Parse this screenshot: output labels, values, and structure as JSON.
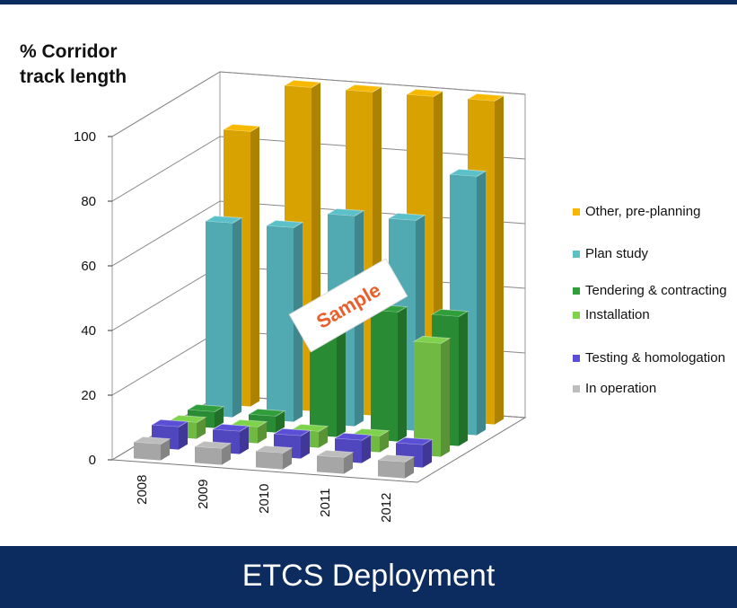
{
  "chart_data": {
    "type": "bar3d",
    "title": "ETCS Deployment",
    "y_label": "% Corridor track length",
    "watermark": "Sample",
    "categories": [
      "2008",
      "2009",
      "2010",
      "2011",
      "2012"
    ],
    "series": [
      {
        "name": "In operation",
        "color": "#bdbdbd",
        "values": [
          5,
          5,
          5,
          5,
          5
        ]
      },
      {
        "name": "Testing & homologation",
        "color": "#5b4fd8",
        "values": [
          7,
          7,
          7,
          7,
          7
        ]
      },
      {
        "name": "Installation",
        "color": "#7fd24c",
        "values": [
          5,
          5,
          5,
          5,
          35
        ]
      },
      {
        "name": "Tendering & contracting",
        "color": "#2f9e3b",
        "values": [
          5,
          5,
          35,
          40,
          40
        ]
      },
      {
        "name": "Plan study",
        "color": "#5cc0c9",
        "values": [
          60,
          60,
          65,
          65,
          80
        ]
      },
      {
        "name": "Other, pre-planning",
        "color": "#f6b900",
        "values": [
          85,
          100,
          100,
          100,
          100
        ]
      }
    ],
    "ylim": [
      0,
      100
    ],
    "yticks": [
      0,
      20,
      40,
      60,
      80,
      100
    ],
    "grid": true
  }
}
